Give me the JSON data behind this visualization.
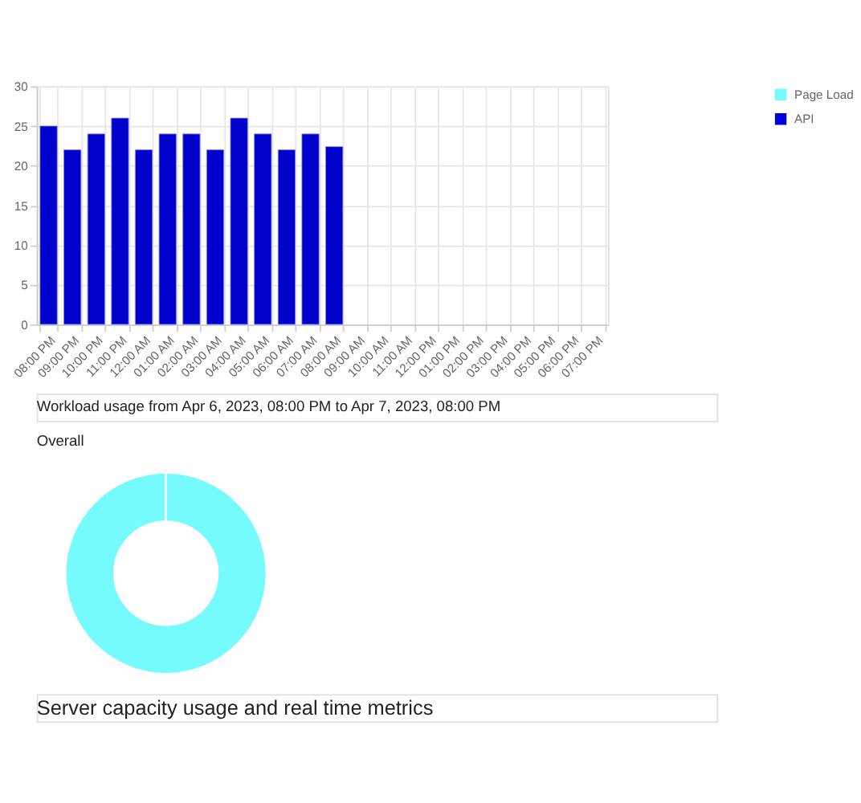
{
  "chart_data": [
    {
      "type": "bar",
      "categories": [
        "08:00 PM",
        "09:00 PM",
        "10:00 PM",
        "11:00 PM",
        "12:00 AM",
        "01:00 AM",
        "02:00 AM",
        "03:00 AM",
        "04:00 AM",
        "05:00 AM",
        "06:00 AM",
        "07:00 AM",
        "08:00 AM",
        "09:00 AM",
        "10:00 AM",
        "11:00 AM",
        "12:00 PM",
        "01:00 PM",
        "02:00 PM",
        "03:00 PM",
        "04:00 PM",
        "05:00 PM",
        "06:00 PM",
        "07:00 PM"
      ],
      "values": [
        25,
        22,
        24,
        26,
        22,
        24,
        24,
        22,
        26,
        24,
        22,
        24,
        22.4,
        null,
        null,
        null,
        null,
        null,
        null,
        null,
        null,
        null,
        null,
        null
      ],
      "color": "#0000cd",
      "ylim": [
        0,
        30
      ],
      "yticks": [
        0,
        5,
        10,
        15,
        20,
        25,
        30
      ],
      "grid": true,
      "annotations": [
        "Workload usage from Apr 6, 2023, 08:00 PM to Apr 7, 2023, 08:00 PM"
      ]
    },
    {
      "type": "donut",
      "title": "Overall",
      "categories": [
        "Page Load",
        "API"
      ],
      "values": [
        100,
        0
      ],
      "colors": [
        "#75fbfd",
        "#0000e0"
      ],
      "legend": "right",
      "annotations": [
        "Server capacity usage and real time metrics"
      ]
    }
  ]
}
